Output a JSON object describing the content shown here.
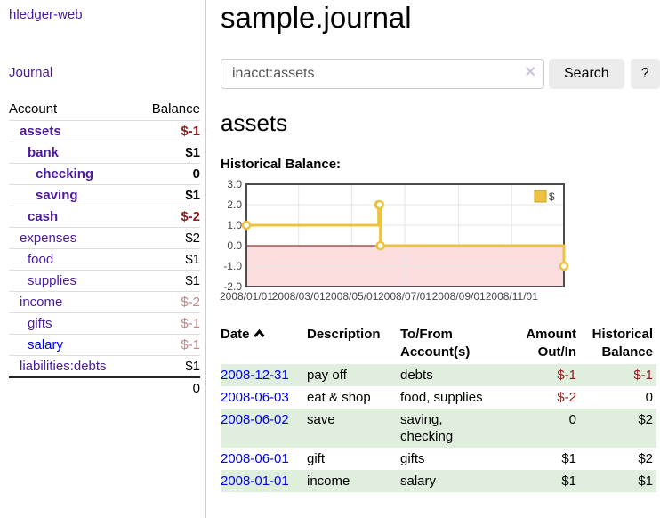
{
  "colors": {
    "link_purple": "#4c1a9e",
    "link_blue": "#0000ee",
    "negative_red": "#8c1b1b",
    "negative_soft_red": "#c08484",
    "row_green": "#dfeedd",
    "series_yellow": "#edc240"
  },
  "sidebar": {
    "brand": "hledger-web",
    "nav_journal": "Journal",
    "accounts": {
      "headers": {
        "account": "Account",
        "balance": "Balance"
      },
      "rows": [
        {
          "name": "assets",
          "balance": "$-1"
        },
        {
          "name": "bank",
          "balance": "$1"
        },
        {
          "name": "checking",
          "balance": "0"
        },
        {
          "name": "saving",
          "balance": "$1"
        },
        {
          "name": "cash",
          "balance": "$-2"
        },
        {
          "name": "expenses",
          "balance": "$2"
        },
        {
          "name": "food",
          "balance": "$1"
        },
        {
          "name": "supplies",
          "balance": "$1"
        },
        {
          "name": "income",
          "balance": "$-2"
        },
        {
          "name": "gifts",
          "balance": "$-1"
        },
        {
          "name": "salary",
          "balance": "$-1"
        },
        {
          "name": "liabilities:debts",
          "balance": "$1"
        }
      ],
      "total": "0"
    }
  },
  "main": {
    "title": "sample.journal",
    "search": {
      "value": "inacct:assets",
      "clear_icon": "✕",
      "button_label": "Search",
      "help_label": "?"
    },
    "account_title": "assets",
    "chart_label": "Historical Balance:",
    "register": {
      "headers": {
        "date": "Date",
        "description": "Description",
        "accounts": "To/From Account(s)",
        "amount": "Amount Out/In",
        "balance": "Historical Balance"
      },
      "rows": [
        {
          "date": "2008-12-31",
          "description": "pay off",
          "accounts": "debts",
          "amount": "$-1",
          "balance": "$-1"
        },
        {
          "date": "2008-06-03",
          "description": "eat & shop",
          "accounts": "food, supplies",
          "amount": "$-2",
          "balance": "0"
        },
        {
          "date": "2008-06-02",
          "description": "save",
          "accounts": "saving, checking",
          "amount": "0",
          "balance": "$2"
        },
        {
          "date": "2008-06-01",
          "description": "gift",
          "accounts": "gifts",
          "amount": "$1",
          "balance": "$2"
        },
        {
          "date": "2008-01-01",
          "description": "income",
          "accounts": "salary",
          "amount": "$1",
          "balance": "$1"
        }
      ]
    }
  },
  "chart_data": {
    "type": "line",
    "title": "Historical Balance:",
    "step": true,
    "grid": true,
    "legend_position": "top-right",
    "x_range": [
      "2008/01/01",
      "2008/12/31"
    ],
    "ylim": [
      -2.0,
      3.0
    ],
    "yticks": [
      3.0,
      2.0,
      1.0,
      0.0,
      -1.0,
      -2.0
    ],
    "xticks": [
      "2008/01/01",
      "2008/03/01",
      "2008/05/01",
      "2008/07/01",
      "2008/09/01",
      "2008/11/01"
    ],
    "series": [
      {
        "name": "$",
        "points": [
          [
            "2008-01-01",
            1
          ],
          [
            "2008-06-01",
            2
          ],
          [
            "2008-06-02",
            2
          ],
          [
            "2008-06-03",
            0
          ],
          [
            "2008-12-31",
            -1
          ]
        ]
      }
    ],
    "colors": {
      "series": "#edc240",
      "marker_fill": "#ffffff",
      "negative_region": "#fbdddd",
      "zero_line": "#8b0000",
      "grid": "#e6e6e6",
      "border": "#4d4d4d"
    }
  }
}
